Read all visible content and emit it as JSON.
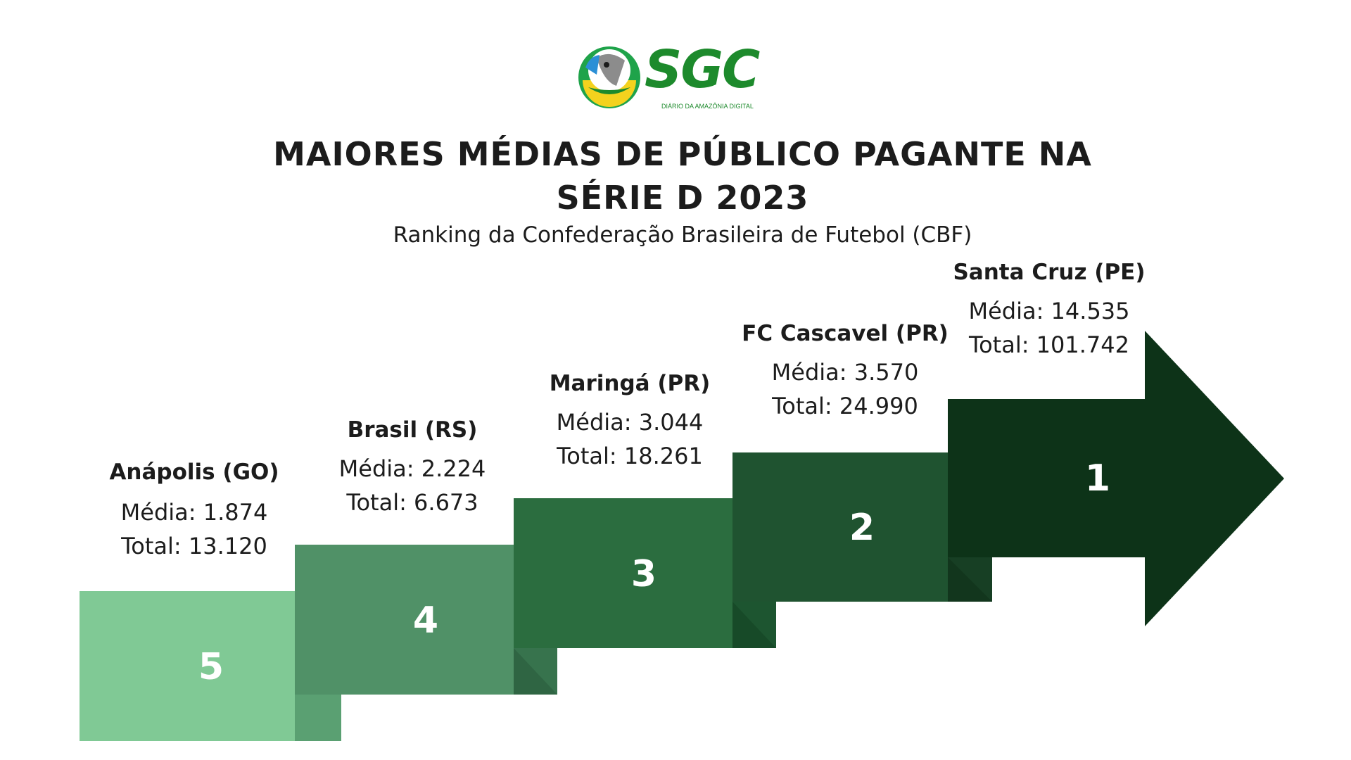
{
  "logo": {
    "text": "SGC",
    "tagline": "DIÁRIO DA AMAZÔNIA DIGITAL"
  },
  "title": {
    "line1": "MAIORES MÉDIAS DE PÚBLICO PAGANTE NA",
    "line2": "SÉRIE D 2023"
  },
  "subtitle": "Ranking da Confederação Brasileira de Futebol (CBF)",
  "ranking": [
    {
      "rank": "5",
      "team": "Anápolis (GO)",
      "media": "Média: 1.874",
      "total": "Total: 13.120",
      "color": "#80c995"
    },
    {
      "rank": "4",
      "team": "Brasil (RS)",
      "media": "Média: 2.224",
      "total": "Total: 6.673",
      "color": "#509167"
    },
    {
      "rank": "3",
      "team": "Maringá (PR)",
      "media": "Média: 3.044",
      "total": "Total: 18.261",
      "color": "#2b6d3f"
    },
    {
      "rank": "2",
      "team": "FC Cascavel (PR)",
      "media": "Média: 3.570",
      "total": "Total: 24.990",
      "color": "#1f5330"
    },
    {
      "rank": "1",
      "team": "Santa Cruz (PE)",
      "media": "Média: 14.535",
      "total": "Total: 101.742",
      "color": "#0d3318"
    }
  ]
}
